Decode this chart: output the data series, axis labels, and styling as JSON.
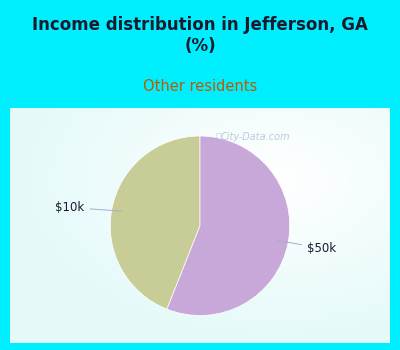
{
  "title": "Income distribution in Jefferson, GA\n(%)",
  "subtitle": "Other residents",
  "title_color": "#1a1a2e",
  "subtitle_color": "#b85c00",
  "bg_color": "#00efff",
  "chart_bg": "#ffffff",
  "slices": [
    0.44,
    0.56
  ],
  "slice_colors": [
    "#c8cc96",
    "#c8a8d8"
  ],
  "labels": [
    "$10k",
    "$50k"
  ],
  "label_color": "#1a1a2e",
  "startangle": 90,
  "watermark": "City-Data.com"
}
